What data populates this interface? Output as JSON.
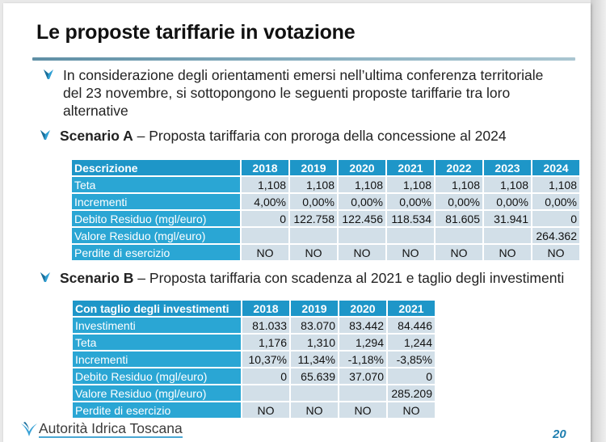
{
  "title": "Le proposte tariffarie in votazione",
  "intro": "In considerazione degli orientamenti emersi nell’ultima conferenza territoriale del 23 novembre, si sottopongono le seguenti proposte tariffarie tra loro alternative",
  "scenario_a": {
    "label": "Scenario A",
    "text": " – Proposta tariffaria con proroga della concessione al 2024",
    "header": "Descrizione",
    "years": [
      "2018",
      "2019",
      "2020",
      "2021",
      "2022",
      "2023",
      "2024"
    ],
    "rows": [
      {
        "label": "Teta",
        "values": [
          "1,108",
          "1,108",
          "1,108",
          "1,108",
          "1,108",
          "1,108",
          "1,108"
        ]
      },
      {
        "label": "Incrementi",
        "values": [
          "4,00%",
          "0,00%",
          "0,00%",
          "0,00%",
          "0,00%",
          "0,00%",
          "0,00%"
        ]
      },
      {
        "label": "Debito Residuo (mgl/euro)",
        "values": [
          "0",
          "122.758",
          "122.456",
          "118.534",
          "81.605",
          "31.941",
          "0"
        ]
      },
      {
        "label": "Valore Residuo (mgl/euro)",
        "values": [
          "",
          "",
          "",
          "",
          "",
          "",
          "264.362"
        ]
      },
      {
        "label": "Perdite di esercizio",
        "values": [
          "NO",
          "NO",
          "NO",
          "NO",
          "NO",
          "NO",
          "NO"
        ]
      }
    ]
  },
  "scenario_b": {
    "label": "Scenario B",
    "text": " – Proposta tariffaria con scadenza al 2021 e taglio degli investimenti",
    "header": "Con taglio degli investimenti",
    "years": [
      "2018",
      "2019",
      "2020",
      "2021"
    ],
    "rows": [
      {
        "label": "Investimenti",
        "values": [
          "81.033",
          "83.070",
          "83.442",
          "84.446"
        ]
      },
      {
        "label": "Teta",
        "values": [
          "1,176",
          "1,310",
          "1,294",
          "1,244"
        ]
      },
      {
        "label": "Incrementi",
        "values": [
          "10,37%",
          "11,34%",
          "-1,18%",
          "-3,85%"
        ]
      },
      {
        "label": "Debito Residuo (mgl/euro)",
        "values": [
          "0",
          "65.639",
          "37.070",
          "0"
        ]
      },
      {
        "label": "Valore Residuo (mgl/euro)",
        "values": [
          "",
          "",
          "",
          "285.209"
        ]
      },
      {
        "label": "Perdite di esercizio",
        "values": [
          "NO",
          "NO",
          "NO",
          "NO"
        ]
      }
    ]
  },
  "footer": {
    "logo_text": "Autorità Idrica Toscana",
    "page_number": "20"
  },
  "colors": {
    "header_blue": "#1e96c8",
    "label_blue": "#2aa6d4",
    "cell_gray": "#d2dfe8",
    "accent": "#4aa7d4"
  }
}
